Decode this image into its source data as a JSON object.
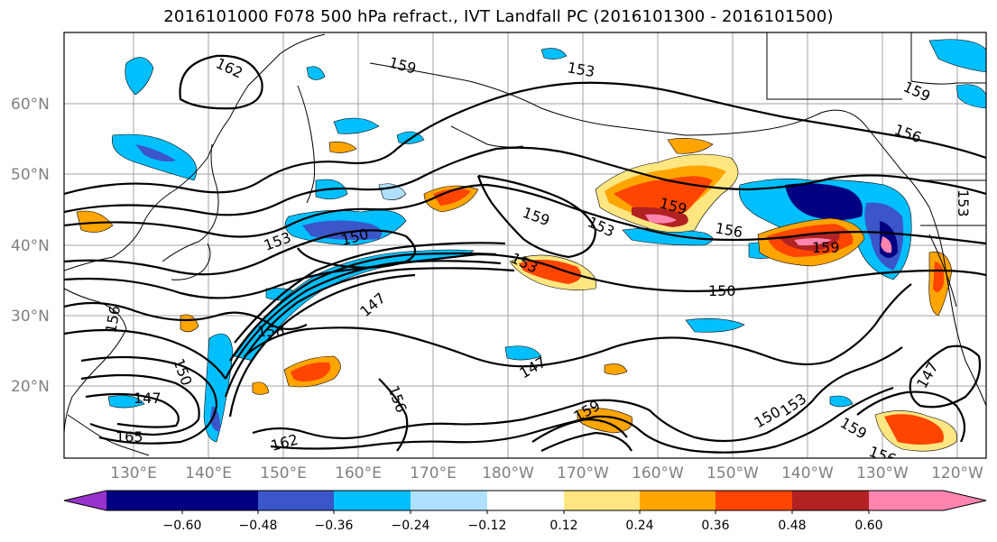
{
  "title": "2016101000 F078 500 hPa refract., IVT Landfall PC (2016101300 - 2016101500)",
  "map": {
    "lat_ticks": [
      "60°N",
      "50°N",
      "40°N",
      "30°N",
      "20°N"
    ],
    "lon_ticks": [
      "130°E",
      "140°E",
      "150°E",
      "160°E",
      "170°E",
      "180°W",
      "170°W",
      "160°W",
      "150°W",
      "140°W",
      "130°W",
      "120°W"
    ],
    "contour_labels": [
      "162",
      "159",
      "153",
      "156",
      "159",
      "156",
      "153",
      "159",
      "150",
      "153",
      "153",
      "159",
      "150",
      "147",
      "156",
      "150",
      "147",
      "156",
      "162",
      "147",
      "150",
      "153",
      "159",
      "156",
      "159",
      "147",
      "165",
      "156",
      "153",
      "159"
    ]
  },
  "colorbar": {
    "tick_labels": [
      "−0.60",
      "−0.48",
      "−0.36",
      "−0.24",
      "−0.12",
      "0.12",
      "0.24",
      "0.36",
      "0.48",
      "0.60"
    ],
    "colors": [
      "#9932cc",
      "#000080",
      "#3a56c8",
      "#00bfff",
      "#b0e0ff",
      "#ffffff",
      "#ffe680",
      "#ffa500",
      "#ff4500",
      "#b22222",
      "#ff85b0"
    ]
  }
}
